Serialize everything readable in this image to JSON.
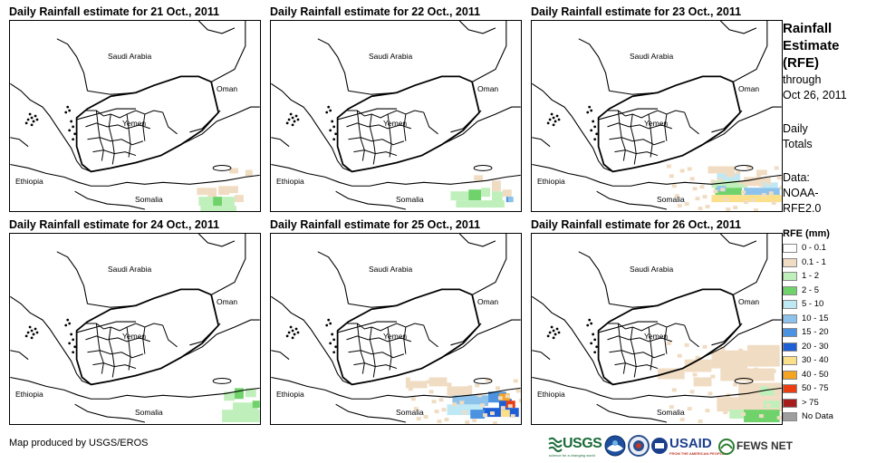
{
  "panels": [
    {
      "title": "Daily Rainfall estimate for 21 Oct., 2011",
      "rain": "p21"
    },
    {
      "title": "Daily Rainfall estimate for 22 Oct., 2011",
      "rain": "p22"
    },
    {
      "title": "Daily Rainfall estimate for 23 Oct., 2011",
      "rain": "p23"
    },
    {
      "title": "Daily Rainfall estimate for 24 Oct., 2011",
      "rain": "p24"
    },
    {
      "title": "Daily Rainfall estimate for 25 Oct., 2011",
      "rain": "p25"
    },
    {
      "title": "Daily Rainfall estimate for 26 Oct., 2011",
      "rain": "p26"
    }
  ],
  "map_labels": {
    "saudi": "Saudi Arabia",
    "oman": "Oman",
    "yemen": "Yemen",
    "ethiopia": "Ethiopia",
    "somalia": "Somalia"
  },
  "side": {
    "title_lines": [
      "Rainfall",
      "Estimate",
      "(RFE)"
    ],
    "through": "through",
    "date": "Oct 26, 2011",
    "daily": "Daily",
    "totals": "Totals",
    "data_label": "Data:",
    "source_1": "NOAA-",
    "source_2": "RFE2.0"
  },
  "legend": {
    "title": "RFE (mm)",
    "items": [
      {
        "label": "0 - 0.1",
        "color": "#ffffff"
      },
      {
        "label": "0.1 - 1",
        "color": "#f0dcc2"
      },
      {
        "label": "1 - 2",
        "color": "#bff0bb"
      },
      {
        "label": "2 - 5",
        "color": "#6fd26a"
      },
      {
        "label": "5 - 10",
        "color": "#bfe8f5"
      },
      {
        "label": "10 - 15",
        "color": "#8cc2eb"
      },
      {
        "label": "15 - 20",
        "color": "#4b93e0"
      },
      {
        "label": "20 - 30",
        "color": "#1f5fd6"
      },
      {
        "label": "30 - 40",
        "color": "#fbe08c"
      },
      {
        "label": "40 - 50",
        "color": "#f4a323"
      },
      {
        "label": "50 - 75",
        "color": "#ec3e13"
      },
      {
        "label": "> 75",
        "color": "#a61d1d"
      },
      {
        "label": "No Data",
        "color": "#9e9e9e"
      }
    ]
  },
  "credit": "Map produced by USGS/EROS",
  "logos": {
    "usgs": "USGS",
    "usgs_tagline": "science for a changing world",
    "usaid": "USAID",
    "usaid_tagline": "FROM THE AMERICAN PEOPLE",
    "fews": "FEWS NET"
  }
}
